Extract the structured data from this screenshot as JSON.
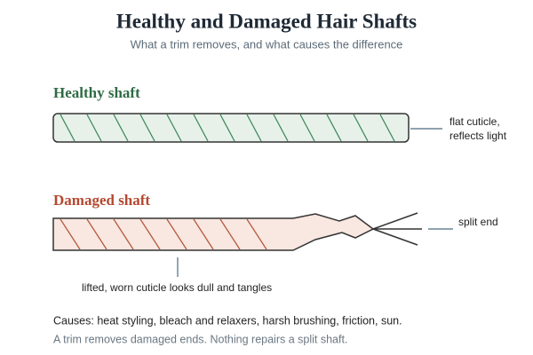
{
  "header": {
    "title": "Healthy and Damaged Hair Shafts",
    "subtitle": "What a trim removes, and what causes the difference"
  },
  "healthy": {
    "label": "Healthy shaft",
    "note": [
      "flat cuticle,",
      "reflects light"
    ]
  },
  "damaged": {
    "label": "Damaged shaft",
    "split_note": "split end",
    "cuticle_note": "lifted, worn cuticle looks dull and tangles"
  },
  "footer": {
    "causes": "Causes: heat styling, bleach and relaxers, harsh brushing, friction, sun.",
    "note": "A trim removes damaged ends. Nothing repairs a split shaft."
  }
}
